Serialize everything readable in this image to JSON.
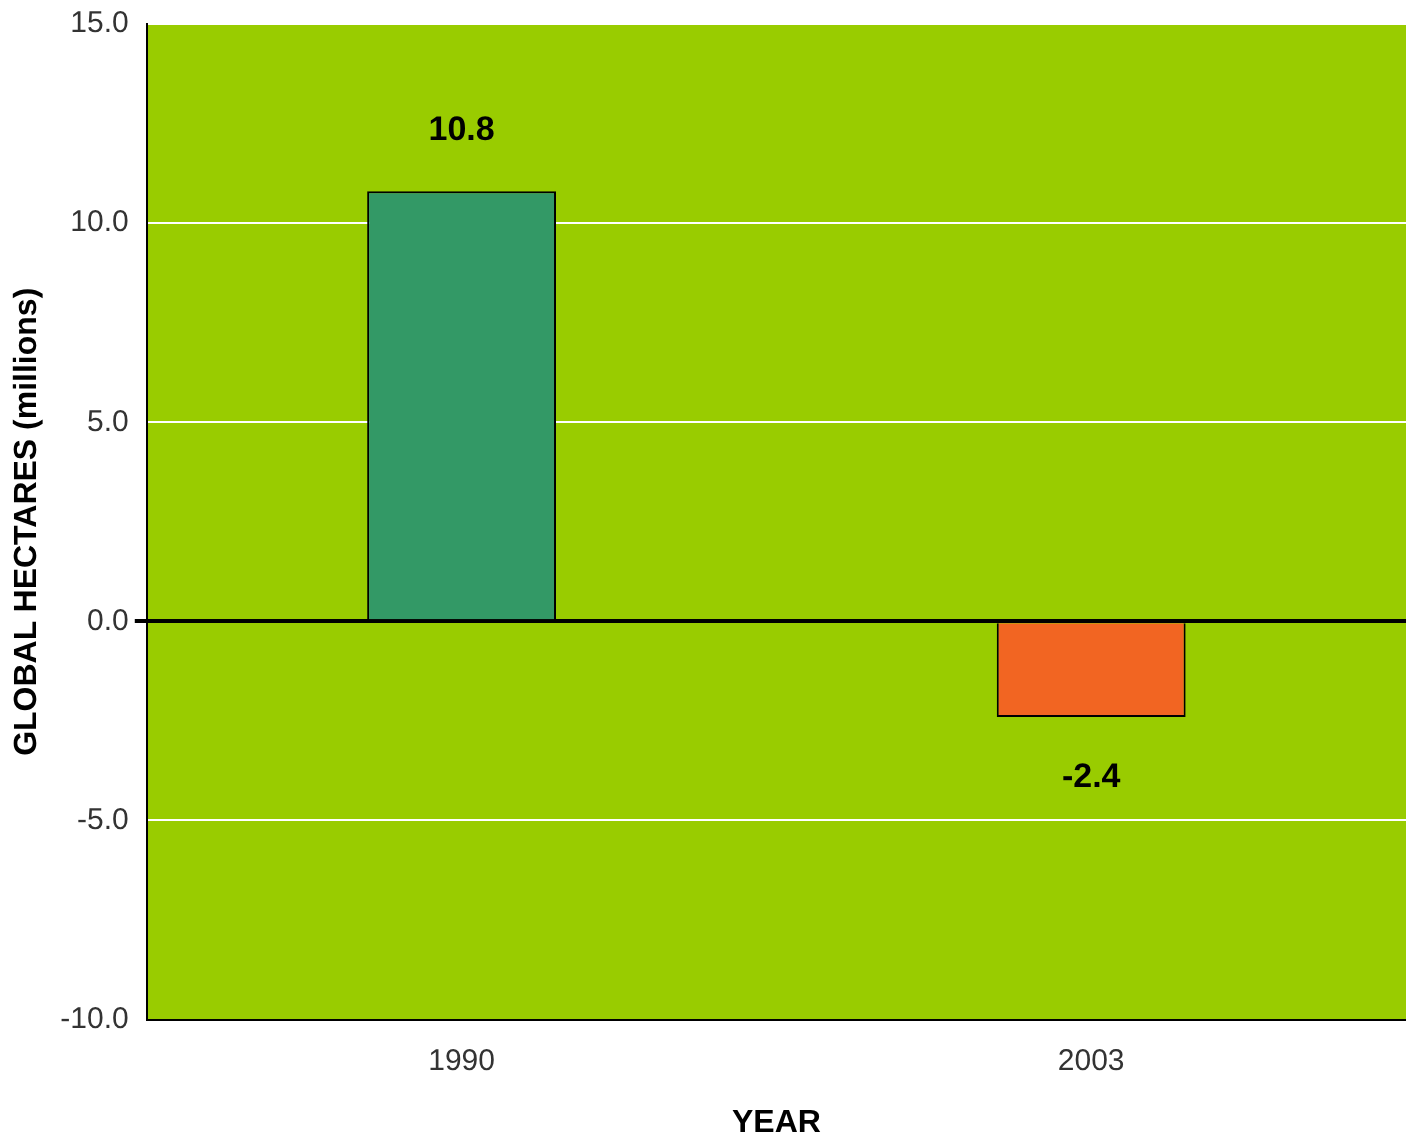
{
  "chart_data": {
    "type": "bar",
    "xlabel": "YEAR",
    "ylabel": "GLOBAL HECTARES (millions)",
    "categories": [
      "1990",
      "2003"
    ],
    "values": [
      10.8,
      -2.4
    ],
    "colors": [
      "#339966",
      "#f26522"
    ],
    "ylim": [
      -10,
      15
    ],
    "yticks": [
      {
        "value": -10,
        "label": "-10.0"
      },
      {
        "value": -5,
        "label": "-5.0"
      },
      {
        "value": 0,
        "label": "0.0"
      },
      {
        "value": 5,
        "label": "5.0"
      },
      {
        "value": 10,
        "label": "10.0"
      },
      {
        "value": 15,
        "label": "15.0"
      }
    ],
    "grid": "y",
    "legend": false,
    "data_labels": true
  }
}
